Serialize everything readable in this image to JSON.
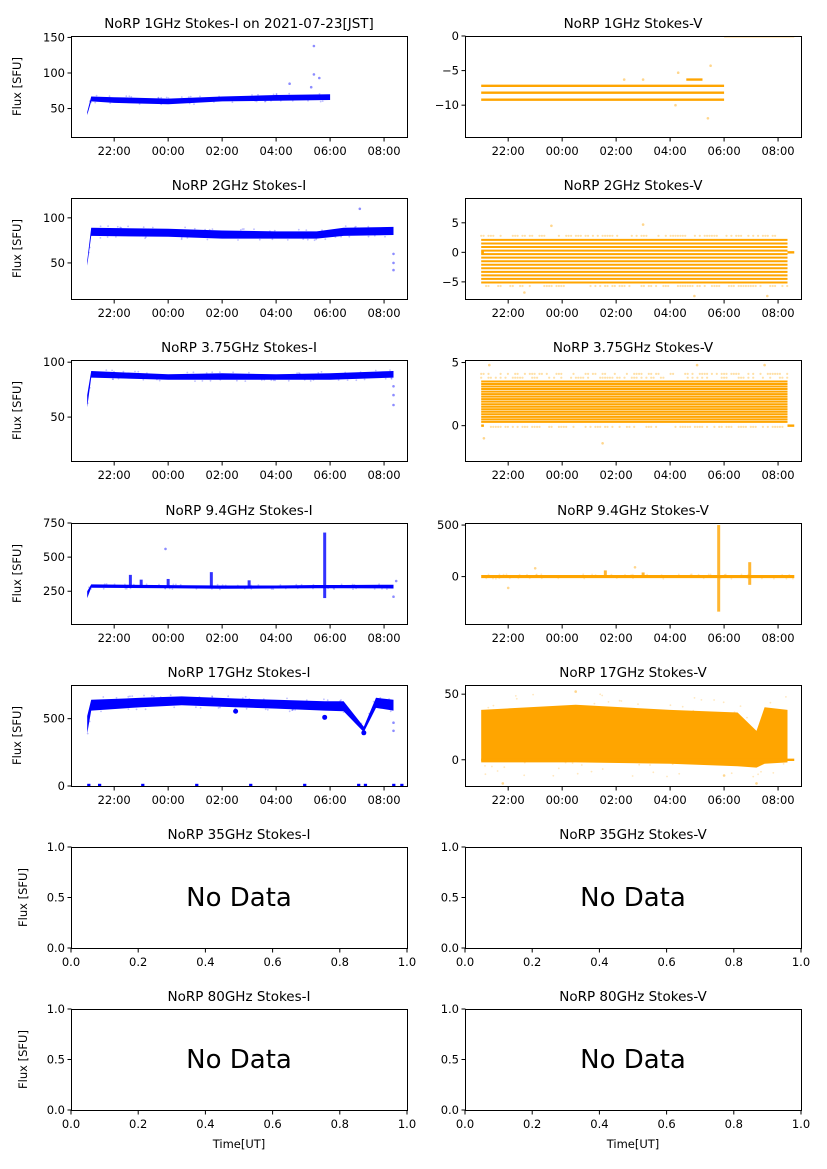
{
  "figure": {
    "rows": 7,
    "cols": 2
  },
  "colors": {
    "stokes_i": "#0000ff",
    "stokes_v": "#ffa500",
    "axis": "#000000"
  },
  "chart_data": [
    {
      "type": "scatter",
      "id": "1ghz-i",
      "title": "NoRP 1GHz Stokes-I on 2021-07-23[JST]",
      "ylabel": "Flux [SFU]",
      "xlabel": "",
      "xlim_hours": [
        20.4,
        32.85
      ],
      "ylim": [
        10,
        152
      ],
      "xticks": [
        "22:00",
        "00:00",
        "02:00",
        "04:00",
        "06:00",
        "08:00"
      ],
      "xtick_hours": [
        22,
        24,
        26,
        28,
        30,
        32
      ],
      "yticks": [
        50,
        100,
        150
      ],
      "series": [
        {
          "name": "Stokes-I",
          "color": "#0000ff",
          "band": [
            [
              21.0,
              41,
              45
            ],
            [
              21.15,
              60,
              67
            ],
            [
              22,
              58,
              66
            ],
            [
              24,
              56,
              64
            ],
            [
              26,
              60,
              67
            ],
            [
              28,
              61,
              69
            ],
            [
              30.0,
              62,
              70
            ]
          ],
          "outliers": [
            [
              29.4,
              138
            ],
            [
              29.4,
              98
            ],
            [
              28.5,
              85
            ],
            [
              29.6,
              93
            ],
            [
              29.3,
              80
            ]
          ]
        }
      ]
    },
    {
      "type": "scatter",
      "id": "1ghz-v",
      "title": "NoRP 1GHz Stokes-V",
      "ylabel": "",
      "xlabel": "",
      "xlim_hours": [
        20.4,
        32.85
      ],
      "ylim": [
        -14.6,
        0
      ],
      "xticks": [
        "22:00",
        "00:00",
        "02:00",
        "04:00",
        "06:00",
        "08:00"
      ],
      "xtick_hours": [
        22,
        24,
        26,
        28,
        30,
        32
      ],
      "yticks": [
        -10,
        -5,
        0
      ],
      "series": [
        {
          "name": "Stokes-V",
          "color": "#ffa500",
          "levels": [
            [
              21.0,
              30.0,
              -7.2
            ],
            [
              21.0,
              30.0,
              -8.2
            ],
            [
              21.0,
              30.0,
              -9.2
            ],
            [
              28.6,
              29.2,
              -6.3
            ],
            [
              30.0,
              32.6,
              0
            ]
          ],
          "outliers": [
            [
              26.3,
              -6.3
            ],
            [
              27.0,
              -6.3
            ],
            [
              28.3,
              -5.3
            ],
            [
              29.5,
              -4.3
            ],
            [
              29.4,
              -11.9
            ],
            [
              28.2,
              -10
            ]
          ]
        }
      ]
    },
    {
      "type": "scatter",
      "id": "2ghz-i",
      "title": "NoRP 2GHz Stokes-I",
      "ylabel": "Flux [SFU]",
      "xlabel": "",
      "xlim_hours": [
        20.4,
        32.85
      ],
      "ylim": [
        10,
        122
      ],
      "xticks": [
        "22:00",
        "00:00",
        "02:00",
        "04:00",
        "06:00",
        "08:00"
      ],
      "xtick_hours": [
        22,
        24,
        26,
        28,
        30,
        32
      ],
      "yticks": [
        50,
        100
      ],
      "series": [
        {
          "name": "Stokes-I",
          "color": "#0000ff",
          "band": [
            [
              21.0,
              47,
              52
            ],
            [
              21.15,
              80,
              89
            ],
            [
              24,
              79,
              88
            ],
            [
              26,
              77,
              86
            ],
            [
              28,
              77,
              85
            ],
            [
              29.5,
              77,
              85
            ],
            [
              30.5,
              80,
              89
            ],
            [
              32.35,
              81,
              90
            ]
          ],
          "outliers": [
            [
              31.1,
              110
            ],
            [
              32.35,
              42
            ],
            [
              32.35,
              50
            ],
            [
              32.35,
              60
            ]
          ]
        }
      ]
    },
    {
      "type": "scatter",
      "id": "2ghz-v",
      "title": "NoRP 2GHz Stokes-V",
      "ylabel": "",
      "xlabel": "",
      "xlim_hours": [
        20.4,
        32.85
      ],
      "ylim": [
        -7.9,
        9.2
      ],
      "xticks": [
        "22:00",
        "00:00",
        "02:00",
        "04:00",
        "06:00",
        "08:00"
      ],
      "xtick_hours": [
        22,
        24,
        26,
        28,
        30,
        32
      ],
      "yticks": [
        -5,
        0,
        5
      ],
      "series": [
        {
          "name": "Stokes-V",
          "color": "#ffa500",
          "levels_range": {
            "x": [
              21.0,
              32.35
            ],
            "y_min": -5.1,
            "y_max": 2.1,
            "step": 0.6
          },
          "sparse_levels": [
            -5.7,
            2.8
          ],
          "outliers": [
            [
              23.6,
              4.5
            ],
            [
              27.0,
              4.7
            ],
            [
              22.6,
              -6.8
            ],
            [
              28.9,
              -7.4
            ],
            [
              31.6,
              -7.4
            ]
          ]
        }
      ]
    },
    {
      "type": "scatter",
      "id": "3-75ghz-i",
      "title": "NoRP 3.75GHz Stokes-I",
      "ylabel": "Flux [SFU]",
      "xlabel": "",
      "xlim_hours": [
        20.4,
        32.85
      ],
      "ylim": [
        10,
        102
      ],
      "xticks": [
        "22:00",
        "00:00",
        "02:00",
        "04:00",
        "06:00",
        "08:00"
      ],
      "xtick_hours": [
        22,
        24,
        26,
        28,
        30,
        32
      ],
      "yticks": [
        50,
        100
      ],
      "series": [
        {
          "name": "Stokes-I",
          "color": "#0000ff",
          "band": [
            [
              21.0,
              59,
              70
            ],
            [
              21.15,
              86,
              92
            ],
            [
              24,
              84,
              89
            ],
            [
              26,
              84,
              90
            ],
            [
              28,
              84,
              89
            ],
            [
              30,
              84,
              90
            ],
            [
              32.35,
              86,
              92
            ]
          ],
          "outliers": [
            [
              32.35,
              61
            ],
            [
              32.35,
              70
            ],
            [
              32.35,
              78
            ]
          ]
        }
      ]
    },
    {
      "type": "scatter",
      "id": "3-75ghz-v",
      "title": "NoRP 3.75GHz Stokes-V",
      "ylabel": "",
      "xlabel": "",
      "xlim_hours": [
        20.4,
        32.85
      ],
      "ylim": [
        -2.8,
        5.2
      ],
      "xticks": [
        "22:00",
        "00:00",
        "02:00",
        "04:00",
        "06:00",
        "08:00"
      ],
      "xtick_hours": [
        22,
        24,
        26,
        28,
        30,
        32
      ],
      "yticks": [
        0,
        5
      ],
      "series": [
        {
          "name": "Stokes-V",
          "color": "#ffa500",
          "levels_range": {
            "x": [
              21.0,
              32.35
            ],
            "y_min": 0.3,
            "y_max": 3.5,
            "step": 0.2
          },
          "sparse_levels": [
            -0.1,
            3.8,
            4.1
          ],
          "outliers": [
            [
              21.1,
              -1.0
            ],
            [
              25.5,
              -1.4
            ],
            [
              21.3,
              4.8
            ],
            [
              29.0,
              4.8
            ],
            [
              31.5,
              4.8
            ]
          ]
        }
      ]
    },
    {
      "type": "scatter",
      "id": "9-4ghz-i",
      "title": "NoRP 9.4GHz Stokes-I",
      "ylabel": "Flux [SFU]",
      "xlabel": "",
      "xlim_hours": [
        20.4,
        32.85
      ],
      "ylim": [
        10,
        750
      ],
      "xticks": [
        "22:00",
        "00:00",
        "02:00",
        "04:00",
        "06:00",
        "08:00"
      ],
      "xtick_hours": [
        22,
        24,
        26,
        28,
        30,
        32
      ],
      "yticks": [
        250,
        500,
        750
      ],
      "series": [
        {
          "name": "Stokes-I",
          "color": "#0000ff",
          "band": [
            [
              21.0,
              200,
              250
            ],
            [
              21.15,
              275,
              300
            ],
            [
              24,
              272,
              295
            ],
            [
              26,
              268,
              292
            ],
            [
              28,
              270,
              292
            ],
            [
              29.5,
              272,
              296
            ],
            [
              30.5,
              272,
              296
            ],
            [
              32.35,
              270,
              298
            ]
          ],
          "spikes": [
            [
              22.6,
              370
            ],
            [
              23.0,
              335
            ],
            [
              24.0,
              340
            ],
            [
              25.6,
              390
            ],
            [
              27.0,
              330
            ],
            [
              29.8,
              680
            ],
            [
              29.8,
              200
            ]
          ],
          "outliers": [
            [
              23.9,
              560
            ],
            [
              32.45,
              325
            ],
            [
              32.35,
              210
            ]
          ]
        }
      ]
    },
    {
      "type": "scatter",
      "id": "9-4ghz-v",
      "title": "NoRP 9.4GHz Stokes-V",
      "ylabel": "",
      "xlabel": "",
      "xlim_hours": [
        20.4,
        32.85
      ],
      "ylim": [
        -460,
        520
      ],
      "xticks": [
        "22:00",
        "00:00",
        "02:00",
        "04:00",
        "06:00",
        "08:00"
      ],
      "xtick_hours": [
        22,
        24,
        26,
        28,
        30,
        32
      ],
      "yticks": [
        0,
        500
      ],
      "series": [
        {
          "name": "Stokes-V",
          "color": "#ffa500",
          "band": [
            [
              21.0,
              -15,
              15
            ],
            [
              32.6,
              -15,
              15
            ]
          ],
          "spikes": [
            [
              29.8,
              500
            ],
            [
              29.8,
              -340
            ],
            [
              30.95,
              140
            ],
            [
              30.95,
              -80
            ],
            [
              25.6,
              60
            ],
            [
              27.0,
              40
            ]
          ],
          "outliers": [
            [
              22.0,
              -110
            ],
            [
              26.7,
              90
            ],
            [
              23.0,
              80
            ]
          ]
        }
      ]
    },
    {
      "type": "scatter",
      "id": "17ghz-i",
      "title": "NoRP 17GHz Stokes-I",
      "ylabel": "Flux [SFU]",
      "xlabel": "",
      "xlim_hours": [
        20.4,
        32.85
      ],
      "ylim": [
        0,
        750
      ],
      "xticks": [
        "22:00",
        "00:00",
        "02:00",
        "04:00",
        "06:00",
        "08:00"
      ],
      "xtick_hours": [
        22,
        24,
        26,
        28,
        30,
        32
      ],
      "yticks": [
        0,
        500
      ],
      "series": [
        {
          "name": "Stokes-I",
          "color": "#0000ff",
          "band": [
            [
              21.0,
              390,
              520
            ],
            [
              21.15,
              560,
              640
            ],
            [
              23,
              585,
              655
            ],
            [
              24.5,
              600,
              665
            ],
            [
              26.5,
              585,
              650
            ],
            [
              28,
              575,
              640
            ],
            [
              29.8,
              560,
              630
            ],
            [
              30.5,
              555,
              630
            ],
            [
              31.25,
              400,
              440
            ],
            [
              31.7,
              580,
              655
            ],
            [
              32.35,
              560,
              640
            ]
          ],
          "dips": [
            [
              26.5,
              555
            ],
            [
              29.8,
              510
            ],
            [
              31.25,
              395
            ]
          ],
          "zero_marks": [
            21.0,
            21.4,
            23.0,
            25.0,
            27.0,
            29.0,
            31.0,
            31.25,
            32.3,
            32.6
          ],
          "outliers": [
            [
              32.35,
              410
            ],
            [
              32.35,
              470
            ]
          ]
        }
      ]
    },
    {
      "type": "scatter",
      "id": "17ghz-v",
      "title": "NoRP 17GHz Stokes-V",
      "ylabel": "",
      "xlabel": "",
      "xlim_hours": [
        20.4,
        32.85
      ],
      "ylim": [
        -20,
        57
      ],
      "xticks": [
        "22:00",
        "00:00",
        "02:00",
        "04:00",
        "06:00",
        "08:00"
      ],
      "xtick_hours": [
        22,
        24,
        26,
        28,
        30,
        32
      ],
      "yticks": [
        0,
        50
      ],
      "series": [
        {
          "name": "Stokes-V",
          "color": "#ffa500",
          "band": [
            [
              21.0,
              -2,
              38
            ],
            [
              24.5,
              -2,
              42
            ],
            [
              28,
              -3,
              38
            ],
            [
              30.5,
              -5,
              36
            ],
            [
              31.2,
              -6,
              22
            ],
            [
              31.5,
              -3,
              40
            ],
            [
              32.35,
              -2,
              38
            ]
          ],
          "zero_line": [
            21.0,
            32.6
          ],
          "outliers": [
            [
              21.8,
              -18
            ],
            [
              24.5,
              52
            ],
            [
              31.2,
              -18
            ],
            [
              30.0,
              -12
            ]
          ]
        }
      ]
    },
    {
      "type": "scatter",
      "id": "35ghz-i",
      "title": "NoRP 35GHz Stokes-I",
      "ylabel": "Flux [SFU]",
      "xlabel": "",
      "xlim": [
        0,
        1
      ],
      "ylim": [
        0,
        1
      ],
      "xticks": [
        "0.0",
        "0.2",
        "0.4",
        "0.6",
        "0.8",
        "1.0"
      ],
      "yticks": [
        "0.0",
        "0.5",
        "1.0"
      ],
      "annotation": "No Data",
      "series": []
    },
    {
      "type": "scatter",
      "id": "35ghz-v",
      "title": "NoRP 35GHz Stokes-V",
      "ylabel": "",
      "xlabel": "",
      "xlim": [
        0,
        1
      ],
      "ylim": [
        0,
        1
      ],
      "xticks": [
        "0.0",
        "0.2",
        "0.4",
        "0.6",
        "0.8",
        "1.0"
      ],
      "yticks": [
        "0.0",
        "0.5",
        "1.0"
      ],
      "annotation": "No Data",
      "series": []
    },
    {
      "type": "scatter",
      "id": "80ghz-i",
      "title": "NoRP 80GHz Stokes-I",
      "ylabel": "Flux [SFU]",
      "xlabel": "Time[UT]",
      "xlim": [
        0,
        1
      ],
      "ylim": [
        0,
        1
      ],
      "xticks": [
        "0.0",
        "0.2",
        "0.4",
        "0.6",
        "0.8",
        "1.0"
      ],
      "yticks": [
        "0.0",
        "0.5",
        "1.0"
      ],
      "annotation": "No Data",
      "series": []
    },
    {
      "type": "scatter",
      "id": "80ghz-v",
      "title": "NoRP 80GHz Stokes-V",
      "ylabel": "",
      "xlabel": "Time[UT]",
      "xlim": [
        0,
        1
      ],
      "ylim": [
        0,
        1
      ],
      "xticks": [
        "0.0",
        "0.2",
        "0.4",
        "0.6",
        "0.8",
        "1.0"
      ],
      "yticks": [
        "0.0",
        "0.5",
        "1.0"
      ],
      "annotation": "No Data",
      "series": []
    }
  ]
}
